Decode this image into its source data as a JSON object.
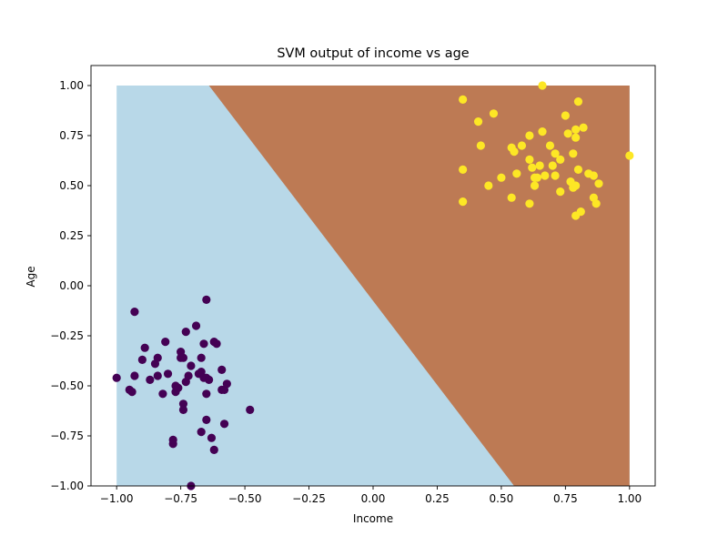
{
  "chart_data": {
    "type": "scatter",
    "title": "SVM output of income vs age",
    "xlabel": "Income",
    "ylabel": "Age",
    "xlim": [
      -1.1,
      1.1
    ],
    "ylim": [
      -1.0,
      1.1
    ],
    "grid": false,
    "xticks": [
      -1.0,
      -0.75,
      -0.5,
      -0.25,
      0.0,
      0.25,
      0.5,
      0.75,
      1.0
    ],
    "xtick_labels": [
      "−1.00",
      "−0.75",
      "−0.50",
      "−0.25",
      "0.00",
      "0.25",
      "0.50",
      "0.75",
      "1.00"
    ],
    "yticks": [
      -1.0,
      -0.75,
      -0.5,
      -0.25,
      0.0,
      0.25,
      0.5,
      0.75,
      1.0
    ],
    "ytick_labels": [
      "−1.00",
      "−0.75",
      "−0.50",
      "−0.25",
      "0.00",
      "0.25",
      "0.50",
      "0.75",
      "1.00"
    ],
    "decision_regions": {
      "extent": {
        "x": [
          -1.0,
          1.0
        ],
        "y": [
          -1.0,
          1.0
        ]
      },
      "boundary": [
        [
          -0.64,
          1.0
        ],
        [
          0.55,
          -1.0
        ]
      ],
      "class_0_color": "#b8d8e8",
      "class_1_color": "#bd7a54"
    },
    "series": [
      {
        "color": "#440154",
        "points": [
          [
            -1.0,
            -0.46
          ],
          [
            -0.93,
            -0.13
          ],
          [
            -0.95,
            -0.52
          ],
          [
            -0.94,
            -0.53
          ],
          [
            -0.93,
            -0.45
          ],
          [
            -0.9,
            -0.37
          ],
          [
            -0.89,
            -0.31
          ],
          [
            -0.87,
            -0.47
          ],
          [
            -0.85,
            -0.39
          ],
          [
            -0.84,
            -0.36
          ],
          [
            -0.84,
            -0.45
          ],
          [
            -0.82,
            -0.54
          ],
          [
            -0.81,
            -0.28
          ],
          [
            -0.8,
            -0.44
          ],
          [
            -0.78,
            -0.79
          ],
          [
            -0.78,
            -0.77
          ],
          [
            -0.77,
            -0.53
          ],
          [
            -0.77,
            -0.5
          ],
          [
            -0.76,
            -0.51
          ],
          [
            -0.75,
            -0.33
          ],
          [
            -0.75,
            -0.36
          ],
          [
            -0.74,
            -0.59
          ],
          [
            -0.74,
            -0.62
          ],
          [
            -0.74,
            -0.36
          ],
          [
            -0.73,
            -0.23
          ],
          [
            -0.73,
            -0.48
          ],
          [
            -0.72,
            -0.45
          ],
          [
            -0.71,
            -0.4
          ],
          [
            -0.71,
            -1.0
          ],
          [
            -0.69,
            -0.2
          ],
          [
            -0.68,
            -0.44
          ],
          [
            -0.67,
            -0.43
          ],
          [
            -0.67,
            -0.73
          ],
          [
            -0.67,
            -0.36
          ],
          [
            -0.66,
            -0.29
          ],
          [
            -0.66,
            -0.46
          ],
          [
            -0.65,
            -0.46
          ],
          [
            -0.65,
            -0.07
          ],
          [
            -0.65,
            -0.54
          ],
          [
            -0.65,
            -0.67
          ],
          [
            -0.64,
            -0.47
          ],
          [
            -0.63,
            -0.76
          ],
          [
            -0.62,
            -0.82
          ],
          [
            -0.62,
            -0.28
          ],
          [
            -0.61,
            -0.29
          ],
          [
            -0.59,
            -0.42
          ],
          [
            -0.59,
            -0.52
          ],
          [
            -0.58,
            -0.69
          ],
          [
            -0.58,
            -0.52
          ],
          [
            -0.57,
            -0.49
          ],
          [
            -0.48,
            -0.62
          ]
        ]
      },
      {
        "color": "#fde725",
        "points": [
          [
            0.35,
            0.93
          ],
          [
            0.35,
            0.58
          ],
          [
            0.35,
            0.42
          ],
          [
            0.41,
            0.82
          ],
          [
            0.42,
            0.7
          ],
          [
            0.45,
            0.5
          ],
          [
            0.47,
            0.86
          ],
          [
            0.5,
            0.54
          ],
          [
            0.54,
            0.44
          ],
          [
            0.54,
            0.69
          ],
          [
            0.55,
            0.67
          ],
          [
            0.56,
            0.56
          ],
          [
            0.58,
            0.7
          ],
          [
            0.61,
            0.75
          ],
          [
            0.61,
            0.41
          ],
          [
            0.61,
            0.63
          ],
          [
            0.62,
            0.59
          ],
          [
            0.63,
            0.54
          ],
          [
            0.63,
            0.5
          ],
          [
            0.64,
            0.54
          ],
          [
            0.65,
            0.6
          ],
          [
            0.66,
            1.0
          ],
          [
            0.66,
            0.77
          ],
          [
            0.67,
            0.55
          ],
          [
            0.69,
            0.7
          ],
          [
            0.7,
            0.6
          ],
          [
            0.71,
            0.55
          ],
          [
            0.71,
            0.66
          ],
          [
            0.73,
            0.63
          ],
          [
            0.73,
            0.47
          ],
          [
            0.75,
            0.85
          ],
          [
            0.76,
            0.76
          ],
          [
            0.77,
            0.52
          ],
          [
            0.78,
            0.66
          ],
          [
            0.78,
            0.49
          ],
          [
            0.79,
            0.78
          ],
          [
            0.79,
            0.74
          ],
          [
            0.79,
            0.35
          ],
          [
            0.79,
            0.5
          ],
          [
            0.8,
            0.58
          ],
          [
            0.8,
            0.92
          ],
          [
            0.81,
            0.37
          ],
          [
            0.82,
            0.79
          ],
          [
            0.84,
            0.56
          ],
          [
            0.86,
            0.55
          ],
          [
            0.86,
            0.44
          ],
          [
            0.87,
            0.41
          ],
          [
            0.88,
            0.51
          ],
          [
            1.0,
            0.65
          ]
        ]
      }
    ]
  }
}
